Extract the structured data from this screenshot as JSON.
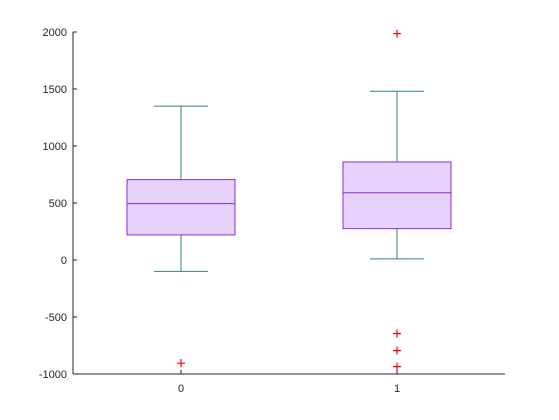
{
  "chart_data": {
    "type": "box",
    "categories": [
      "0",
      "1"
    ],
    "boxes": [
      {
        "category": "0",
        "whisker_low": -100,
        "q1": 220,
        "median": 495,
        "q3": 705,
        "whisker_high": 1350,
        "outliers": [
          -905
        ]
      },
      {
        "category": "1",
        "whisker_low": 10,
        "q1": 275,
        "median": 590,
        "q3": 860,
        "whisker_high": 1480,
        "outliers": [
          1985,
          -645,
          -795,
          -935
        ]
      }
    ],
    "ylim": [
      -1000,
      2000
    ],
    "yticks": [
      "-1000",
      "-500",
      "0",
      "500",
      "1000",
      "1500",
      "2000"
    ],
    "grid": false,
    "colors": {
      "box_edge": "#8a2be2",
      "box_fill": "#e6d2fa",
      "median": "#8a2be2",
      "whisker": "#2e8b57",
      "outlier": "#ff0000"
    }
  }
}
